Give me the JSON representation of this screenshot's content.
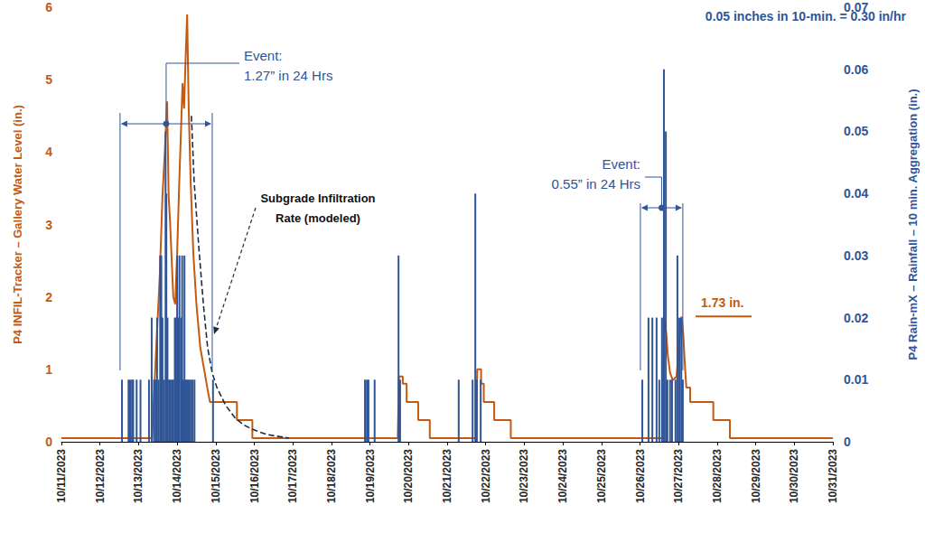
{
  "chart_data": {
    "type": "line",
    "xlim": [
      11,
      31
    ],
    "xticks": [
      {
        "value": 11,
        "label": "10/11/2023"
      },
      {
        "value": 12,
        "label": "10/12/2023"
      },
      {
        "value": 13,
        "label": "10/13/2023"
      },
      {
        "value": 14,
        "label": "10/14/2023"
      },
      {
        "value": 15,
        "label": "10/15/2023"
      },
      {
        "value": 16,
        "label": "10/16/2023"
      },
      {
        "value": 17,
        "label": "10/17/2023"
      },
      {
        "value": 18,
        "label": "10/18/2023"
      },
      {
        "value": 19,
        "label": "10/19/2023"
      },
      {
        "value": 20,
        "label": "10/20/2023"
      },
      {
        "value": 21,
        "label": "10/21/2023"
      },
      {
        "value": 22,
        "label": "10/22/2023"
      },
      {
        "value": 23,
        "label": "10/23/2023"
      },
      {
        "value": 24,
        "label": "10/24/2023"
      },
      {
        "value": 25,
        "label": "10/25/2023"
      },
      {
        "value": 26,
        "label": "10/26/2023"
      },
      {
        "value": 27,
        "label": "10/27/2023"
      },
      {
        "value": 28,
        "label": "10/28/2023"
      },
      {
        "value": 29,
        "label": "10/29/2023"
      },
      {
        "value": 30,
        "label": "10/30/2023"
      },
      {
        "value": 31,
        "label": "10/31/2023"
      }
    ],
    "ylabel": "P4 INFIL-Tracker – Gallery Water Level (in.)",
    "ylim": [
      0,
      6
    ],
    "yticks": [
      0,
      1,
      2,
      3,
      4,
      5,
      6
    ],
    "y2label": "P4 Rain-mX – Rainfall – 10 min. Aggregation (in.)",
    "y2lim": [
      0,
      0.07
    ],
    "y2ticks": [
      0,
      0.01,
      0.02,
      0.03,
      0.04,
      0.05,
      0.06,
      0.07
    ],
    "grid": false,
    "series": [
      {
        "type": "line",
        "color": "#c55a11",
        "line_style": "solid",
        "marker": "none",
        "x": [
          11,
          13.35,
          13.45,
          13.55,
          13.62,
          13.68,
          13.74,
          13.78,
          13.82,
          13.86,
          13.9,
          13.95,
          14.0,
          14.05,
          14.1,
          14.14,
          14.18,
          14.22,
          14.26,
          14.3,
          14.35,
          14.42,
          14.5,
          14.6,
          14.7,
          14.78,
          14.85,
          15.55,
          15.55,
          15.95,
          15.95,
          19.72,
          19.75,
          19.85,
          19.85,
          19.95,
          19.95,
          20.25,
          20.25,
          20.55,
          20.55,
          21.75,
          21.78,
          21.88,
          21.88,
          21.95,
          21.95,
          22.22,
          22.22,
          22.65,
          22.65,
          26.58,
          26.62,
          26.68,
          26.72,
          26.78,
          26.85,
          26.95,
          27.02,
          27.08,
          27.12,
          27.16,
          27.2,
          27.3,
          27.3,
          27.9,
          27.9,
          28.33,
          28.33,
          31
        ],
        "values": [
          0.05,
          0.05,
          1.2,
          2.3,
          3.4,
          4.0,
          4.7,
          3.4,
          3.0,
          2.5,
          2.0,
          1.9,
          2.6,
          3.5,
          4.3,
          4.95,
          4.6,
          5.3,
          5.9,
          4.6,
          3.6,
          2.6,
          1.9,
          1.3,
          1.0,
          0.75,
          0.55,
          0.55,
          0.3,
          0.3,
          0.05,
          0.05,
          0.9,
          0.9,
          0.8,
          0.8,
          0.55,
          0.55,
          0.3,
          0.3,
          0.05,
          0.05,
          1.0,
          1.0,
          0.8,
          0.8,
          0.55,
          0.55,
          0.3,
          0.3,
          0.05,
          0.05,
          1.73,
          1.5,
          1.2,
          0.95,
          0.85,
          0.9,
          1.4,
          1.73,
          1.5,
          1.1,
          0.75,
          0.75,
          0.55,
          0.55,
          0.3,
          0.3,
          0.05,
          0.05
        ]
      },
      {
        "type": "bar",
        "axis": "y2",
        "color": "#2f5597",
        "x": [
          12.57,
          12.74,
          12.78,
          12.83,
          12.86,
          12.95,
          13.05,
          13.27,
          13.34,
          13.4,
          13.44,
          13.48,
          13.52,
          13.56,
          13.59,
          13.62,
          13.66,
          13.7,
          13.72,
          13.75,
          13.79,
          13.82,
          13.86,
          13.9,
          13.94,
          13.97,
          14.0,
          14.03,
          14.06,
          14.1,
          14.13,
          14.16,
          14.19,
          14.22,
          14.25,
          14.28,
          14.32,
          14.36,
          14.4,
          14.45,
          14.93,
          18.87,
          18.92,
          18.96,
          19.12,
          19.74,
          19.78,
          21.3,
          21.66,
          21.73,
          21.77,
          21.87,
          26.06,
          26.22,
          26.32,
          26.43,
          26.5,
          26.57,
          26.62,
          26.67,
          26.71,
          26.78,
          26.83,
          26.92,
          26.97,
          27.02,
          27.07,
          27.11
        ],
        "values": [
          0.01,
          0.01,
          0.01,
          0.01,
          0.01,
          0.01,
          0.01,
          0.01,
          0.02,
          0.01,
          0.01,
          0.02,
          0.01,
          0.03,
          0.03,
          0.02,
          0.01,
          0.05,
          0.04,
          0.02,
          0.01,
          0.01,
          0.01,
          0.01,
          0.02,
          0.02,
          0.03,
          0.02,
          0.03,
          0.02,
          0.03,
          0.01,
          0.03,
          0.01,
          0.01,
          0.01,
          0.01,
          0.01,
          0.01,
          0.01,
          0.01,
          0.01,
          0.01,
          0.01,
          0.01,
          0.03,
          0.01,
          0.01,
          0.01,
          0.04,
          0.01,
          0.01,
          0.01,
          0.02,
          0.02,
          0.02,
          0.01,
          0.02,
          0.06,
          0.05,
          0.01,
          0.01,
          0.01,
          0.01,
          0.03,
          0.02,
          0.02,
          0.01
        ]
      },
      {
        "type": "line",
        "color": "#1f2a44",
        "line_style": "dashed",
        "marker": "none",
        "x": [
          14.37,
          14.44,
          14.56,
          14.68,
          14.79,
          14.91,
          15.03,
          15.26,
          15.5,
          15.73,
          15.96,
          16.32,
          16.9
        ],
        "values": [
          4.5,
          3.6,
          2.7,
          1.9,
          1.3,
          0.95,
          0.75,
          0.5,
          0.33,
          0.23,
          0.17,
          0.1,
          0.05
        ]
      }
    ],
    "events": [
      {
        "text": "Event:\n1.27” in 24 Hrs",
        "start": 12.52,
        "end": 14.91
      },
      {
        "text": "Event:\n0.55” in 24 Hrs",
        "start": 26.01,
        "end": 27.11
      }
    ],
    "annotations": [
      {
        "text": "0.05 inches in 10-min. = 0.30 in/hr"
      },
      {
        "text": "Subgrade Infiltration\nRate (modeled)"
      },
      {
        "text": "1.73 in.",
        "value": 1.73
      }
    ]
  }
}
